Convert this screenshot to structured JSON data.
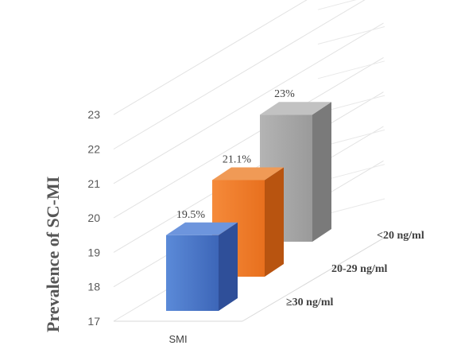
{
  "chart_data": {
    "type": "bar",
    "subtype": "3d-column",
    "ylabel": "Prevalence of SC-MI",
    "ylim": [
      17,
      23.8
    ],
    "yticks": [
      "17",
      "18",
      "19",
      "20",
      "21",
      "22",
      "23"
    ],
    "categories": [
      "SMI"
    ],
    "series": [
      {
        "name": "≥30 ng/ml",
        "values": [
          19.5
        ],
        "label": "19.5%",
        "color": "#4472C4"
      },
      {
        "name": "20-29 ng/ml",
        "values": [
          21.1
        ],
        "label": "21.1%",
        "color": "#ED7D31"
      },
      {
        "name": "<20 ng/ml",
        "values": [
          23
        ],
        "label": "23%",
        "color": "#A5A5A5"
      }
    ],
    "grid": true,
    "legend": "none"
  }
}
